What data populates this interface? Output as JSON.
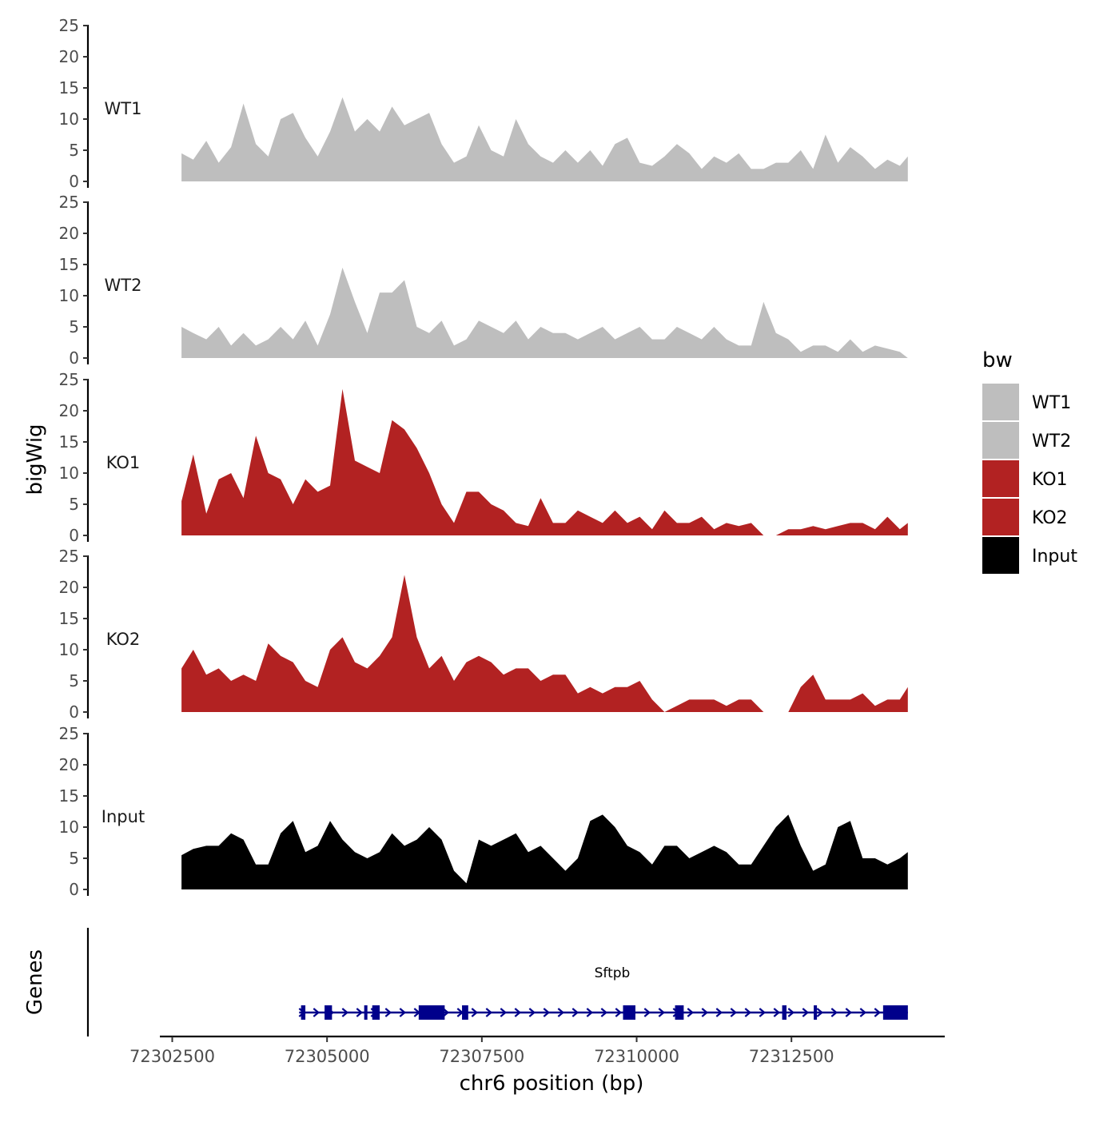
{
  "chart_data": {
    "type": "area",
    "y_axis_title": "bigWig",
    "x_axis_title": "chr6 position (bp)",
    "genes_axis_title": "Genes",
    "xlim": [
      72302300,
      72314950
    ],
    "x_ticks": [
      72302500,
      72305000,
      72307500,
      72310000,
      72312500
    ],
    "x_tick_labels": [
      "72302500",
      "72305000",
      "72307500",
      "72310000",
      "72312500"
    ],
    "ylim": [
      0,
      25
    ],
    "y_ticks": [
      0,
      5,
      10,
      15,
      20,
      25
    ],
    "y_tick_labels": [
      "0",
      "5",
      "10",
      "15",
      "20",
      "25"
    ],
    "legend": {
      "title": "bw",
      "placement": "right",
      "entries": [
        {
          "label": "WT1",
          "color": "#BEBEBE"
        },
        {
          "label": "WT2",
          "color": "#BEBEBE"
        },
        {
          "label": "KO1",
          "color": "#B22222"
        },
        {
          "label": "KO2",
          "color": "#B22222"
        },
        {
          "label": "Input",
          "color": "#000000"
        }
      ]
    },
    "x": [
      72302650,
      72302840,
      72303050,
      72303250,
      72303450,
      72303650,
      72303850,
      72304050,
      72304250,
      72304450,
      72304650,
      72304850,
      72305050,
      72305250,
      72305450,
      72305650,
      72305850,
      72306050,
      72306250,
      72306450,
      72306650,
      72306850,
      72307050,
      72307250,
      72307450,
      72307650,
      72307850,
      72308050,
      72308250,
      72308450,
      72308650,
      72308850,
      72309050,
      72309250,
      72309450,
      72309650,
      72309850,
      72310050,
      72310250,
      72310450,
      72310650,
      72310850,
      72311050,
      72311250,
      72311450,
      72311650,
      72311850,
      72312050,
      72312250,
      72312450,
      72312650,
      72312850,
      72313050,
      72313250,
      72313450,
      72313650,
      72313850,
      72314050,
      72314250,
      72314380
    ],
    "series": [
      {
        "name": "WT1",
        "color": "#BEBEBE",
        "values": [
          4.5,
          3.5,
          6.5,
          3,
          5.5,
          12.5,
          6,
          4,
          10,
          11,
          7,
          4,
          8,
          13.5,
          8,
          10,
          8,
          12,
          9,
          10,
          11,
          6,
          3,
          4,
          9,
          5,
          4,
          10,
          6,
          4,
          3,
          5,
          3,
          5,
          2.5,
          6,
          7,
          3,
          2.5,
          4,
          6,
          4.5,
          2,
          4,
          3,
          4.5,
          2,
          2,
          3,
          3,
          5,
          2,
          7.5,
          3,
          5.5,
          4,
          2,
          3.5,
          2.5,
          4
        ]
      },
      {
        "name": "WT2",
        "color": "#BEBEBE",
        "values": [
          5,
          4,
          3,
          5,
          2,
          4,
          2,
          3,
          5,
          3,
          6,
          2,
          7,
          14.5,
          9,
          4,
          10.5,
          10.5,
          12.5,
          5,
          4,
          6,
          2,
          3,
          6,
          5,
          4,
          6,
          3,
          5,
          4,
          4,
          3,
          4,
          5,
          3,
          4,
          5,
          3,
          3,
          5,
          4,
          3,
          5,
          3,
          2,
          2,
          9,
          4,
          3,
          1,
          2,
          2,
          1,
          3,
          1,
          2,
          1.5,
          1,
          0
        ]
      },
      {
        "name": "KO1",
        "color": "#B22222",
        "values": [
          5.5,
          13,
          3.5,
          9,
          10,
          6,
          16,
          10,
          9,
          5,
          9,
          7,
          8,
          23.5,
          12,
          11,
          10,
          18.5,
          17,
          14,
          10,
          5,
          2,
          7,
          7,
          5,
          4,
          2,
          1.5,
          6,
          2,
          2,
          4,
          3,
          2,
          4,
          2,
          3,
          1,
          4,
          2,
          2,
          3,
          1,
          2,
          1.5,
          2,
          0,
          0,
          1,
          1,
          1.5,
          1,
          1.5,
          2,
          2,
          1,
          3,
          1,
          2
        ]
      },
      {
        "name": "KO2",
        "color": "#B22222",
        "values": [
          7,
          10,
          6,
          7,
          5,
          6,
          5,
          11,
          9,
          8,
          5,
          4,
          10,
          12,
          8,
          7,
          9,
          12,
          22,
          12,
          7,
          9,
          5,
          8,
          9,
          8,
          6,
          7,
          7,
          5,
          6,
          6,
          3,
          4,
          3,
          4,
          4,
          5,
          2,
          0,
          1,
          2,
          2,
          2,
          1,
          2,
          2,
          0,
          0,
          0,
          4,
          6,
          2,
          2,
          2,
          3,
          1,
          2,
          2,
          4
        ]
      },
      {
        "name": "Input",
        "color": "#000000",
        "values": [
          5.5,
          6.5,
          7,
          7,
          9,
          8,
          4,
          4,
          9,
          11,
          6,
          7,
          11,
          8,
          6,
          5,
          6,
          9,
          7,
          8,
          10,
          8,
          3,
          1,
          8,
          7,
          8,
          9,
          6,
          7,
          5,
          3,
          5,
          11,
          12,
          10,
          7,
          6,
          4,
          7,
          7,
          5,
          6,
          7,
          6,
          4,
          4,
          7,
          10,
          12,
          7,
          3,
          4,
          10,
          11,
          5,
          5,
          4,
          5,
          6
        ]
      }
    ],
    "genes": {
      "names": [
        "Sftpb"
      ],
      "color": "#00008B",
      "transcript_start": 72304550,
      "transcript_end": 72314380,
      "strand": "+",
      "exons": [
        [
          72304580,
          72304650
        ],
        [
          72304960,
          72305080
        ],
        [
          72305600,
          72305640
        ],
        [
          72305730,
          72305850
        ],
        [
          72306480,
          72306900
        ],
        [
          72307180,
          72307280
        ],
        [
          72309780,
          72309980
        ],
        [
          72310620,
          72310760
        ],
        [
          72312350,
          72312420
        ],
        [
          72312860,
          72312910
        ],
        [
          72313980,
          72314380
        ]
      ]
    }
  }
}
